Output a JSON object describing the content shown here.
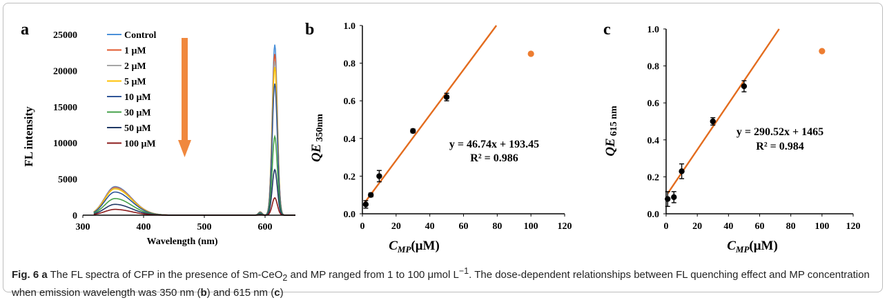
{
  "caption": {
    "fig_label": "Fig. 6",
    "sub_a": "a",
    "part1": " The FL spectra of CFP in the presence of Sm-CeO",
    "part1_sub": "2",
    "part2": " and MP ranged from 1 to 100 μmol L",
    "part2_sup": "−1",
    "part3": ". The dose-dependent relationships between FL quenching effect and MP concentration when emission wavelength was 350 nm (",
    "ref_b": "b",
    "part4": ") and 615 nm (",
    "ref_c": "c",
    "part5": ")"
  },
  "colors": {
    "arrow": "#F0883E",
    "fit_line": "#E36C1E",
    "outlier": "#ED7D31",
    "points": "#000000"
  },
  "chart_data": [
    {
      "panel": "a",
      "type": "line",
      "xlabel": "Wavelength (nm)",
      "ylabel": "FL intensity",
      "xlim": [
        300,
        650
      ],
      "ylim": [
        0,
        25000
      ],
      "xticks": [
        300,
        400,
        500,
        600
      ],
      "yticks": [
        0,
        5000,
        10000,
        15000,
        20000,
        25000
      ],
      "legend_position": "top-left",
      "series": [
        {
          "name": "Control",
          "color": "#4A90D9",
          "peak1": 3950,
          "peak2": 23600
        },
        {
          "name": "1 μM",
          "color": "#E2572B",
          "peak1": 3850,
          "peak2": 22300
        },
        {
          "name": "2 μM",
          "color": "#A5A5A5",
          "peak1": 3750,
          "peak2": 21300
        },
        {
          "name": "5 μM",
          "color": "#FFC000",
          "peak1": 3650,
          "peak2": 20500
        },
        {
          "name": "10 μM",
          "color": "#2F5597",
          "peak1": 3200,
          "peak2": 18200
        },
        {
          "name": "30 μM",
          "color": "#43A047",
          "peak1": 2300,
          "peak2": 10900
        },
        {
          "name": "50 μM",
          "color": "#1F3864",
          "peak1": 1500,
          "peak2": 6300
        },
        {
          "name": "100 μM",
          "color": "#8B1A1A",
          "peak1": 800,
          "peak2": 2400
        }
      ]
    },
    {
      "panel": "b",
      "type": "scatter",
      "xlabel_main": "C",
      "xlabel_sub": "MP",
      "xlabel_unit": "(μM)",
      "ylabel_main": "QE",
      "ylabel_sub": "350nm",
      "xlim": [
        0,
        120
      ],
      "ylim": [
        0,
        1.0
      ],
      "xticks": [
        0,
        20,
        40,
        60,
        80,
        100,
        120
      ],
      "yticks": [
        "0.0",
        "0.2",
        "0.4",
        "0.6",
        "0.8",
        "1.0"
      ],
      "points": [
        {
          "x": 2,
          "y": 0.05,
          "err": 0.02
        },
        {
          "x": 5,
          "y": 0.1,
          "err": 0.01
        },
        {
          "x": 10,
          "y": 0.2,
          "err": 0.03
        },
        {
          "x": 30,
          "y": 0.44,
          "err": 0.01
        },
        {
          "x": 50,
          "y": 0.62,
          "err": 0.02
        }
      ],
      "outlier": {
        "x": 100,
        "y": 0.85
      },
      "fit_line": {
        "x0": 1,
        "y0": 0.055,
        "x1": 79.5,
        "y1": 1.0
      },
      "equation": "y = 46.74x + 193.45",
      "r2": "R² = 0.986"
    },
    {
      "panel": "c",
      "type": "scatter",
      "xlabel_main": "C",
      "xlabel_sub": "MP",
      "xlabel_unit": "(μM)",
      "ylabel_main": "QE",
      "ylabel_sub": "615 nm",
      "xlim": [
        0,
        120
      ],
      "ylim": [
        0,
        1.0
      ],
      "xticks": [
        0,
        20,
        40,
        60,
        80,
        100,
        120
      ],
      "yticks": [
        "0.0",
        "0.2",
        "0.4",
        "0.6",
        "0.8",
        "1.0"
      ],
      "points": [
        {
          "x": 1,
          "y": 0.08,
          "err": 0.04
        },
        {
          "x": 5,
          "y": 0.09,
          "err": 0.03
        },
        {
          "x": 10,
          "y": 0.23,
          "err": 0.04
        },
        {
          "x": 30,
          "y": 0.5,
          "err": 0.02
        },
        {
          "x": 50,
          "y": 0.69,
          "err": 0.03
        }
      ],
      "outlier": {
        "x": 100,
        "y": 0.88
      },
      "fit_line": {
        "x0": 1,
        "y0": 0.11,
        "x1": 72.5,
        "y1": 1.0
      },
      "equation": "y = 290.52x + 1465",
      "r2": "R² = 0.984"
    }
  ],
  "panel_labels": [
    "a",
    "b",
    "c"
  ]
}
